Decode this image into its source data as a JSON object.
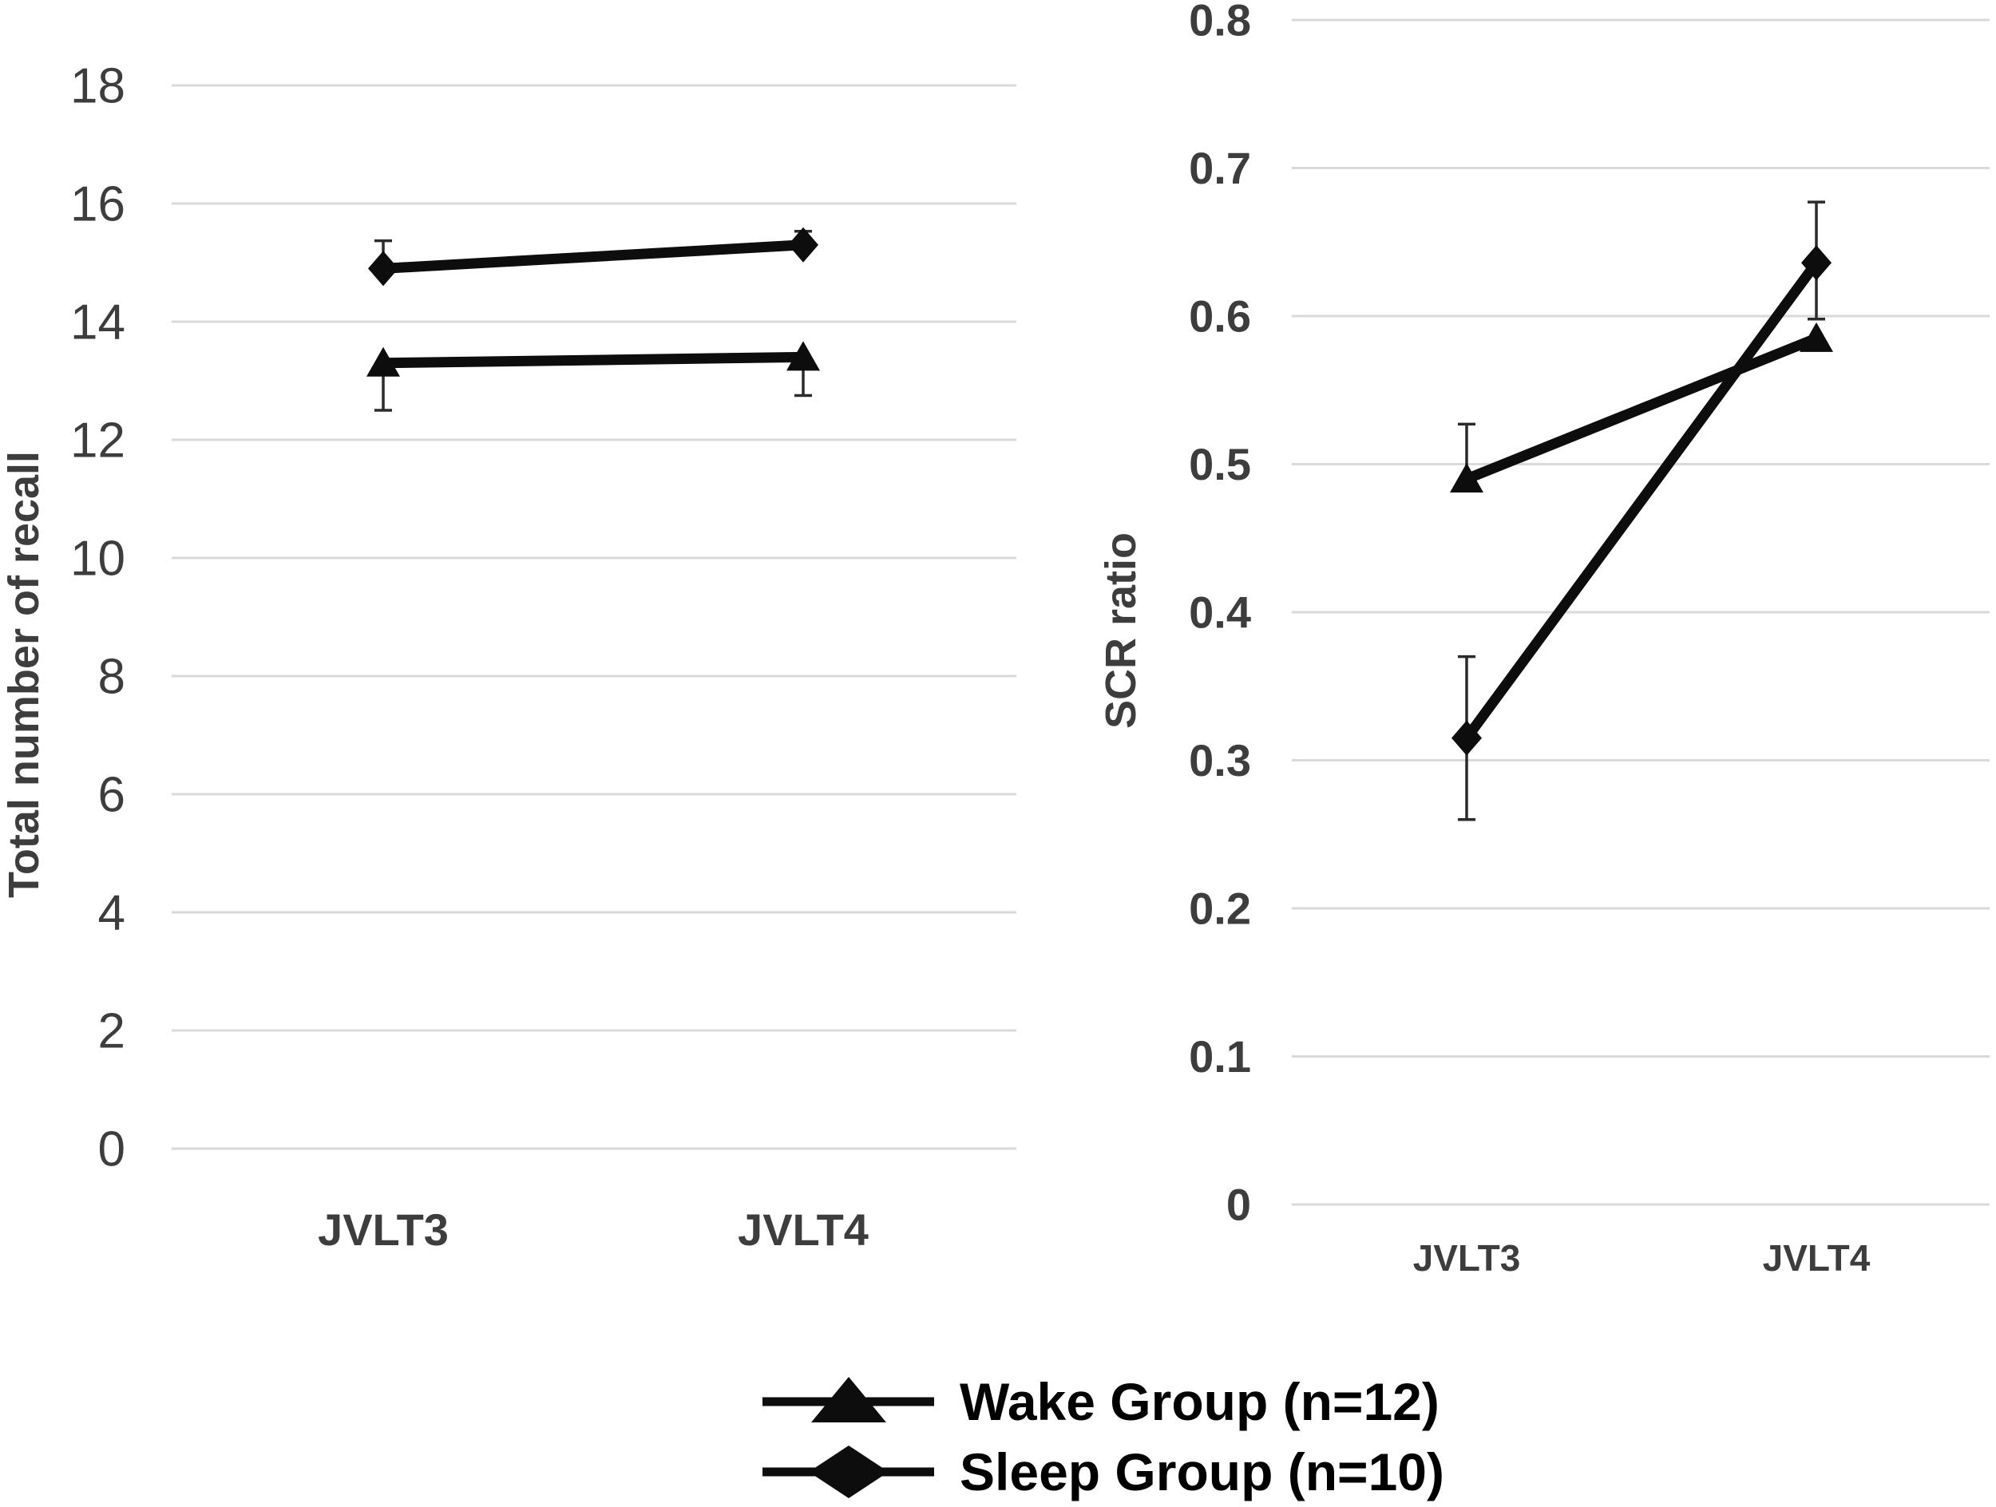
{
  "figure": {
    "background": "#ffffff",
    "colors": {
      "grid": "#d9d9d9",
      "series": "#0d0d0d",
      "error_bar": "#2b2b2b",
      "axis_text": "#3d3d3d",
      "legend_text": "#000000"
    }
  },
  "legend": {
    "items": [
      {
        "label": "Wake Group (n=12)",
        "marker": "triangle"
      },
      {
        "label": "Sleep Group (n=10)",
        "marker": "diamond"
      }
    ]
  },
  "chart_data": [
    {
      "type": "line",
      "title": "",
      "y_axis_label": "Total number of recall",
      "categories": [
        "JVLT3",
        "JVLT4"
      ],
      "ylim": [
        0,
        18
      ],
      "ytick_step": 2,
      "yticks": [
        {
          "label": "18",
          "value": 18
        },
        {
          "label": "16",
          "value": 16
        },
        {
          "label": "14",
          "value": 14
        },
        {
          "label": "12",
          "value": 12
        },
        {
          "label": "10",
          "value": 10
        },
        {
          "label": "8",
          "value": 8
        },
        {
          "label": "6",
          "value": 6
        },
        {
          "label": "4",
          "value": 4
        },
        {
          "label": "2",
          "value": 2
        },
        {
          "label": "0",
          "value": 0
        }
      ],
      "grid": true,
      "legend_position": "bottom-shared",
      "series": [
        {
          "name": "Wake Group (n=12)",
          "marker": "triangle",
          "values": [
            13.3,
            13.4
          ],
          "error_up": [
            null,
            null
          ],
          "error_down": [
            0.8,
            0.65
          ]
        },
        {
          "name": "Sleep Group (n=10)",
          "marker": "diamond",
          "values": [
            14.9,
            15.3
          ],
          "error_up": [
            0.47,
            0.23
          ],
          "error_down": [
            null,
            null
          ]
        }
      ]
    },
    {
      "type": "line",
      "title": "",
      "y_axis_label": "SCR ratio",
      "categories": [
        "JVLT3",
        "JVLT4"
      ],
      "ylim": [
        0,
        0.8
      ],
      "ytick_step": 0.1,
      "yticks": [
        {
          "label": "0.8",
          "value": 0.8
        },
        {
          "label": "0.7",
          "value": 0.7
        },
        {
          "label": "0.6",
          "value": 0.6
        },
        {
          "label": "0.5",
          "value": 0.5
        },
        {
          "label": "0.4",
          "value": 0.4
        },
        {
          "label": "0.3",
          "value": 0.3
        },
        {
          "label": "0.2",
          "value": 0.2
        },
        {
          "label": "0.1",
          "value": 0.1
        },
        {
          "label": "0",
          "value": 0
        }
      ],
      "grid": true,
      "legend_position": "bottom-shared",
      "series": [
        {
          "name": "Wake Group (n=12)",
          "marker": "triangle",
          "values": [
            0.49,
            0.585
          ],
          "error_up": [
            0.037,
            null
          ],
          "error_down": [
            null,
            null
          ]
        },
        {
          "name": "Sleep Group (n=10)",
          "marker": "diamond",
          "values": [
            0.315,
            0.636
          ],
          "error_up": [
            0.055,
            0.041
          ],
          "error_down": [
            0.055,
            0.038
          ]
        }
      ]
    }
  ]
}
